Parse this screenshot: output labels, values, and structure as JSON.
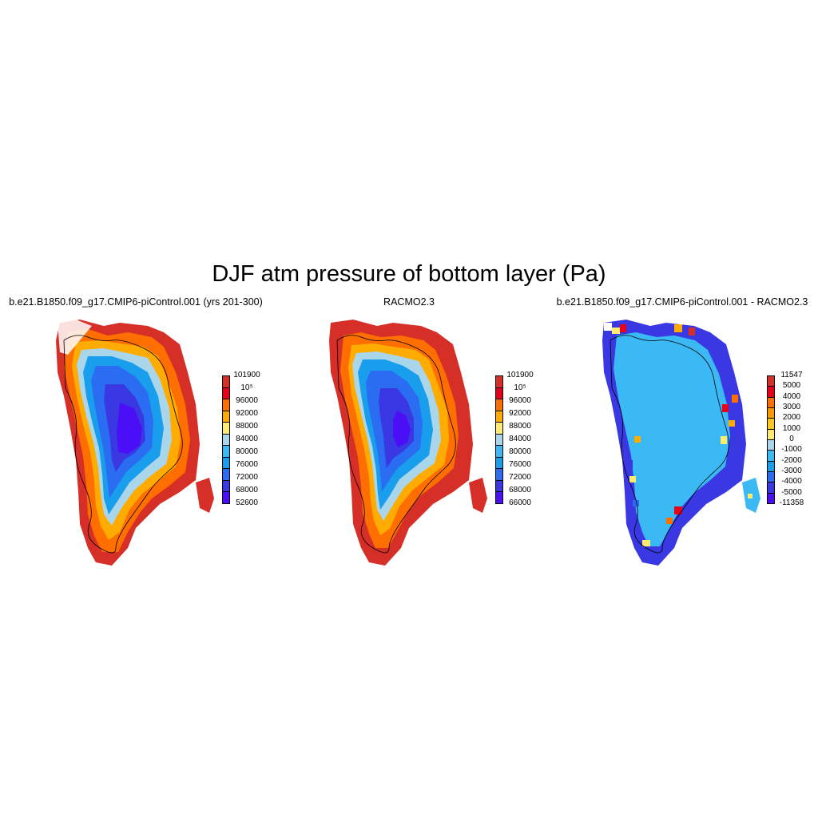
{
  "figure": {
    "title": "DJF atm pressure of bottom layer (Pa)"
  },
  "panels": [
    {
      "title": "b.e21.B1850.f09_g17.CMIP6-piControl.001 (yrs 201-300)",
      "colorbar": {
        "labels": [
          "101900",
          "10⁵",
          "96000",
          "92000",
          "88000",
          "84000",
          "80000",
          "76000",
          "72000",
          "68000",
          "52600"
        ],
        "colors": [
          "#d62f27",
          "#e8001a",
          "#ff6f00",
          "#ffab00",
          "#ffea72",
          "#a9d6ea",
          "#3bb9f5",
          "#199eed",
          "#2a6df2",
          "#3a38e3",
          "#4a0ff6"
        ]
      }
    },
    {
      "title": "RACMO2.3",
      "colorbar": {
        "labels": [
          "101900",
          "10⁵",
          "96000",
          "92000",
          "88000",
          "84000",
          "80000",
          "76000",
          "72000",
          "68000",
          "66000"
        ],
        "colors": [
          "#d62f27",
          "#e8001a",
          "#ff6f00",
          "#ffab00",
          "#ffea72",
          "#a9d6ea",
          "#3bb9f5",
          "#199eed",
          "#2a6df2",
          "#3a38e3",
          "#4a0ff6"
        ]
      }
    },
    {
      "title": "b.e21.B1850.f09_g17.CMIP6-piControl.001 - RACMO2.3",
      "colorbar": {
        "labels": [
          "11547",
          "5000",
          "4000",
          "3000",
          "2000",
          "1000",
          "0",
          "-1000",
          "-2000",
          "-3000",
          "-4000",
          "-5000",
          "-11358"
        ],
        "colors": [
          "#d62f27",
          "#e8001a",
          "#ff6f00",
          "#ff9900",
          "#ffc81e",
          "#ffea72",
          "#a9d6ea",
          "#3bb9f5",
          "#199eed",
          "#2a6df2",
          "#3a38e3",
          "#4a0ff6"
        ]
      }
    }
  ]
}
